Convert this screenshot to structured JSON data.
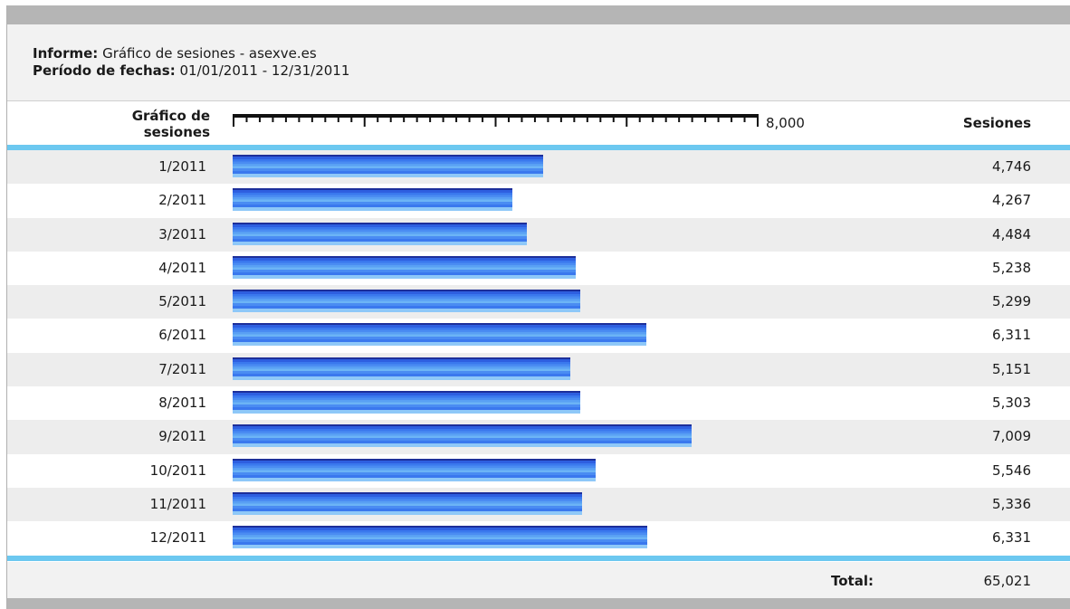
{
  "report": {
    "label_report": "Informe:",
    "report_name": "Gráfico de sesiones - asexve.es",
    "label_period": "Período de fechas:",
    "period_value": "01/01/2011 - 12/31/2011"
  },
  "header": {
    "chart_label_line1": "Gráfico de",
    "chart_label_line2": "sesiones",
    "scale_max_label": "8,000",
    "sessions_label": "Sesiones"
  },
  "footer": {
    "total_label": "Total:",
    "total_value": "65,021"
  },
  "colors": {
    "bar_dark": "#1d2f9a",
    "bar_mid": "#3a78ee",
    "bar_light": "#8ec8f8",
    "separator": "#6cc8f0",
    "row_alt": "#ededed"
  },
  "chart_data": {
    "type": "bar",
    "orientation": "horizontal",
    "title": "",
    "xlabel": "",
    "ylabel": "Gráfico de sesiones",
    "xlim": [
      0,
      8000
    ],
    "categories": [
      "1/2011",
      "2/2011",
      "3/2011",
      "4/2011",
      "5/2011",
      "6/2011",
      "7/2011",
      "8/2011",
      "9/2011",
      "10/2011",
      "11/2011",
      "12/2011"
    ],
    "values": [
      4746,
      4267,
      4484,
      5238,
      5299,
      6311,
      5151,
      5303,
      7009,
      5546,
      5336,
      6331
    ],
    "value_labels": [
      "4,746",
      "4,267",
      "4,484",
      "5,238",
      "5,299",
      "6,311",
      "5,151",
      "5,303",
      "7,009",
      "5,546",
      "5,336",
      "6,331"
    ],
    "grid": false,
    "legend": "none"
  }
}
